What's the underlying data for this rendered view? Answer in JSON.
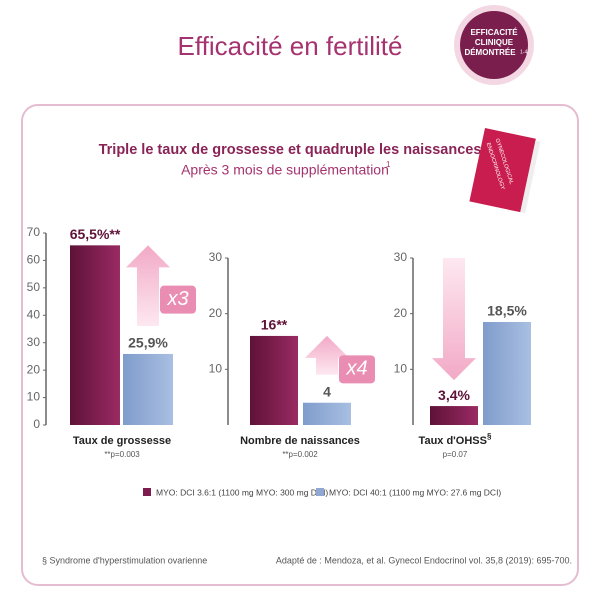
{
  "title": "Efficacité en fertilité",
  "badge": [
    "EFFICACITÉ",
    "CLINIQUE",
    "DÉMONTRÉE",
    "1-4"
  ],
  "headline": "Triple le taux de grossesse et quadruple les naissances",
  "subheadline": "Après 3 mois de supplémentation",
  "subheadline_ref": "1",
  "book": [
    "GYNECOLOGICAL",
    "ENDOCRINOLOGY"
  ],
  "legend": [
    {
      "name": "MYO: DCI 3.6:1 (1100 mg MYO: 300 mg DCI)",
      "color": "#7d1d4f"
    },
    {
      "name": "MYO: DCI 40:1 (1100 mg MYO: 27.6 mg DCI)",
      "color": "#8fa8d3"
    }
  ],
  "chart_data": [
    {
      "type": "bar",
      "xlabel": "Taux de grossesse",
      "note": "**p=0.003",
      "values": [
        65.5,
        25.9
      ],
      "value_labels": [
        "65,5%**",
        "25,9%"
      ],
      "ylim": [
        0,
        70
      ],
      "yticks": [
        0,
        10,
        20,
        30,
        40,
        50,
        60,
        70
      ],
      "multiplier": "x3",
      "arrow": "up"
    },
    {
      "type": "bar",
      "xlabel": "Nombre de naissances",
      "note": "**p=0.002",
      "values": [
        16,
        4
      ],
      "value_labels": [
        "16**",
        "4"
      ],
      "ylim": [
        0,
        30
      ],
      "yticks": [
        10,
        20,
        30
      ],
      "multiplier": "x4",
      "arrow": "up"
    },
    {
      "type": "bar",
      "xlabel": "Taux d'OHSS",
      "xlabel_sup": "§",
      "note": "p=0.07",
      "values": [
        3.4,
        18.5
      ],
      "value_labels": [
        "3,4%",
        "18,5%"
      ],
      "ylim": [
        0,
        30
      ],
      "yticks": [
        10,
        20,
        30
      ],
      "arrow": "down"
    }
  ],
  "footnote": "§ Syndrome d'hyperstimulation ovarienne",
  "source": "Adapté de : Mendoza, et al. Gynecol Endocrinol vol. 35,8 (2019): 695-700."
}
